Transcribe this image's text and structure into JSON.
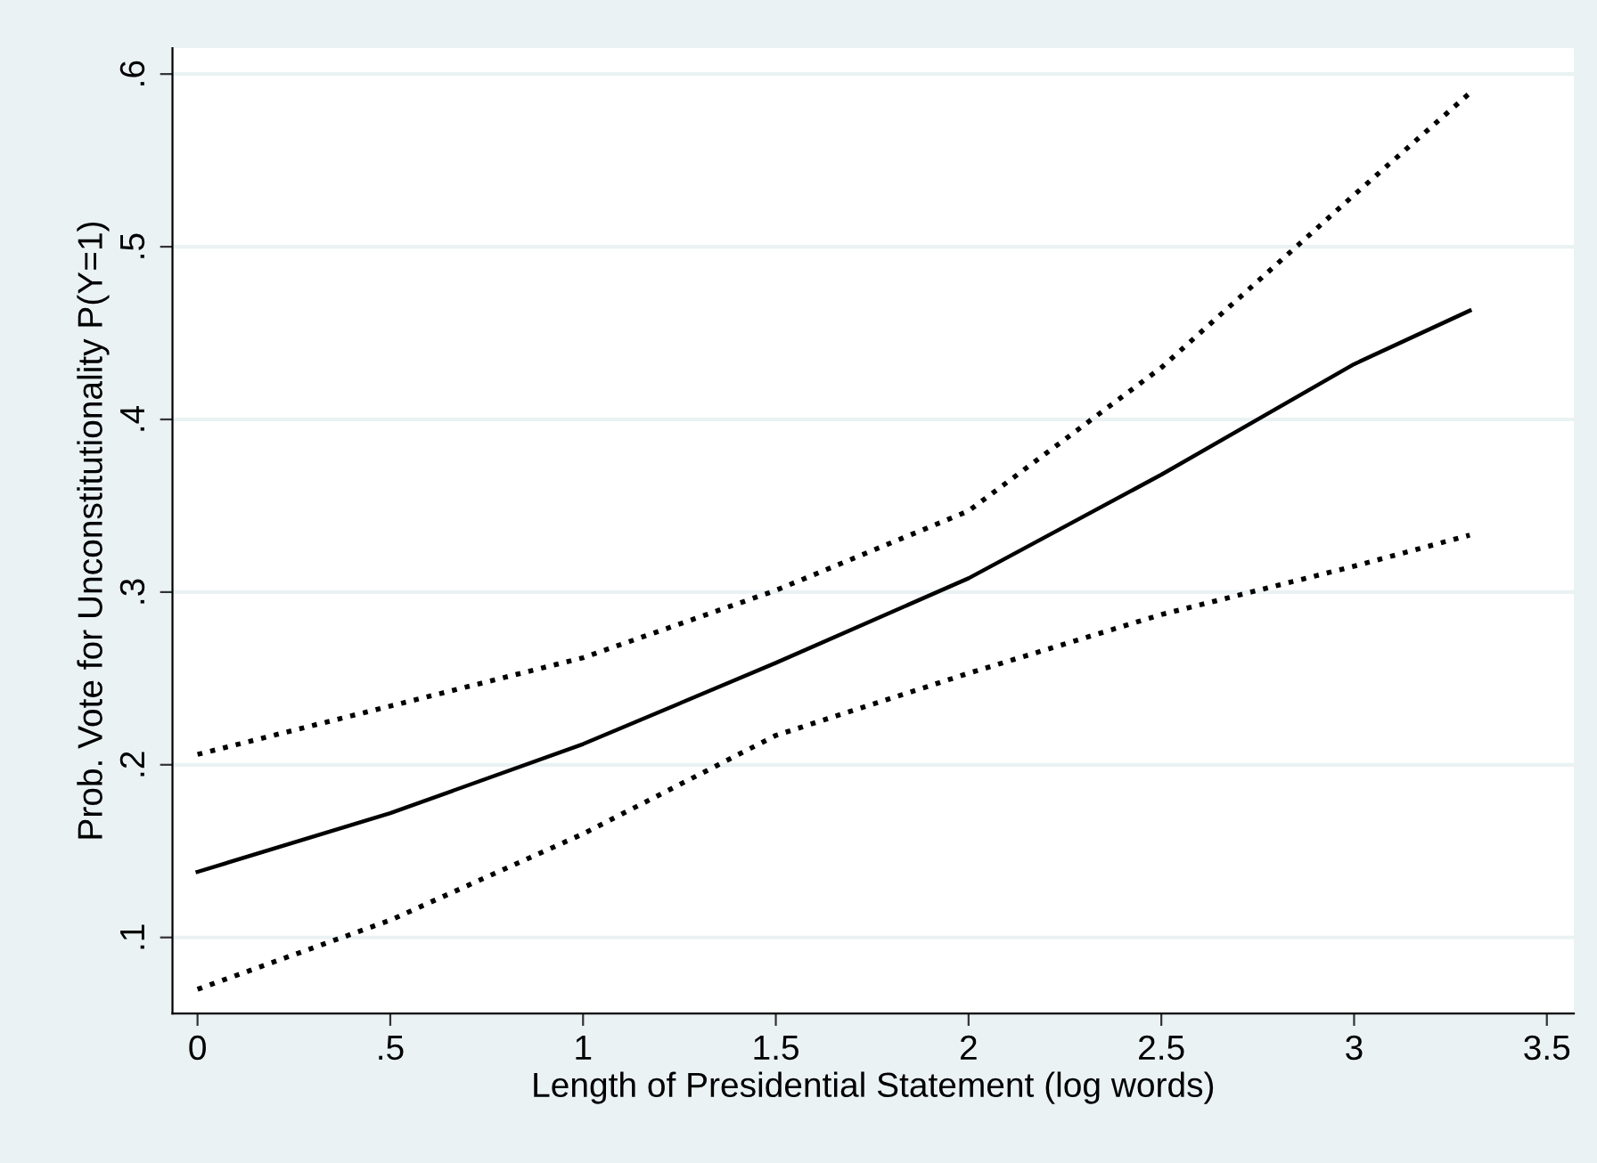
{
  "chart_data": {
    "type": "line",
    "xlabel": "Length of Presidential Statement (log words)",
    "ylabel": "Prob. Vote for Unconstitutionality P(Y=1)",
    "x": [
      0,
      0.5,
      1,
      1.5,
      2,
      2.5,
      3,
      3.3
    ],
    "series": [
      {
        "color": "#000000",
        "line_style": "dotted",
        "values": [
          0.206,
          0.234,
          0.262,
          0.301,
          0.347,
          0.43,
          0.53,
          0.589
        ]
      },
      {
        "color": "#000000",
        "line_style": "solid",
        "values": [
          0.138,
          0.172,
          0.212,
          0.259,
          0.308,
          0.368,
          0.432,
          0.463
        ]
      },
      {
        "color": "#000000",
        "line_style": "dotted",
        "values": [
          0.07,
          0.11,
          0.16,
          0.217,
          0.253,
          0.287,
          0.315,
          0.333
        ]
      }
    ],
    "xlim": [
      -0.065,
      3.57
    ],
    "ylim": [
      0.056,
      0.615
    ],
    "xticks": [
      0,
      {
        "value": 0.5,
        "label": ".5"
      },
      1,
      1.5,
      2,
      2.5,
      3,
      3.5
    ],
    "yticks": [
      {
        "value": 0.1,
        "label": ".1"
      },
      {
        "value": 0.2,
        "label": ".2"
      },
      {
        "value": 0.3,
        "label": ".3"
      },
      {
        "value": 0.4,
        "label": ".4"
      },
      {
        "value": 0.5,
        "label": ".5"
      },
      {
        "value": 0.6,
        "label": ".6"
      }
    ],
    "grid": "y",
    "legend": false,
    "marker": "none"
  }
}
